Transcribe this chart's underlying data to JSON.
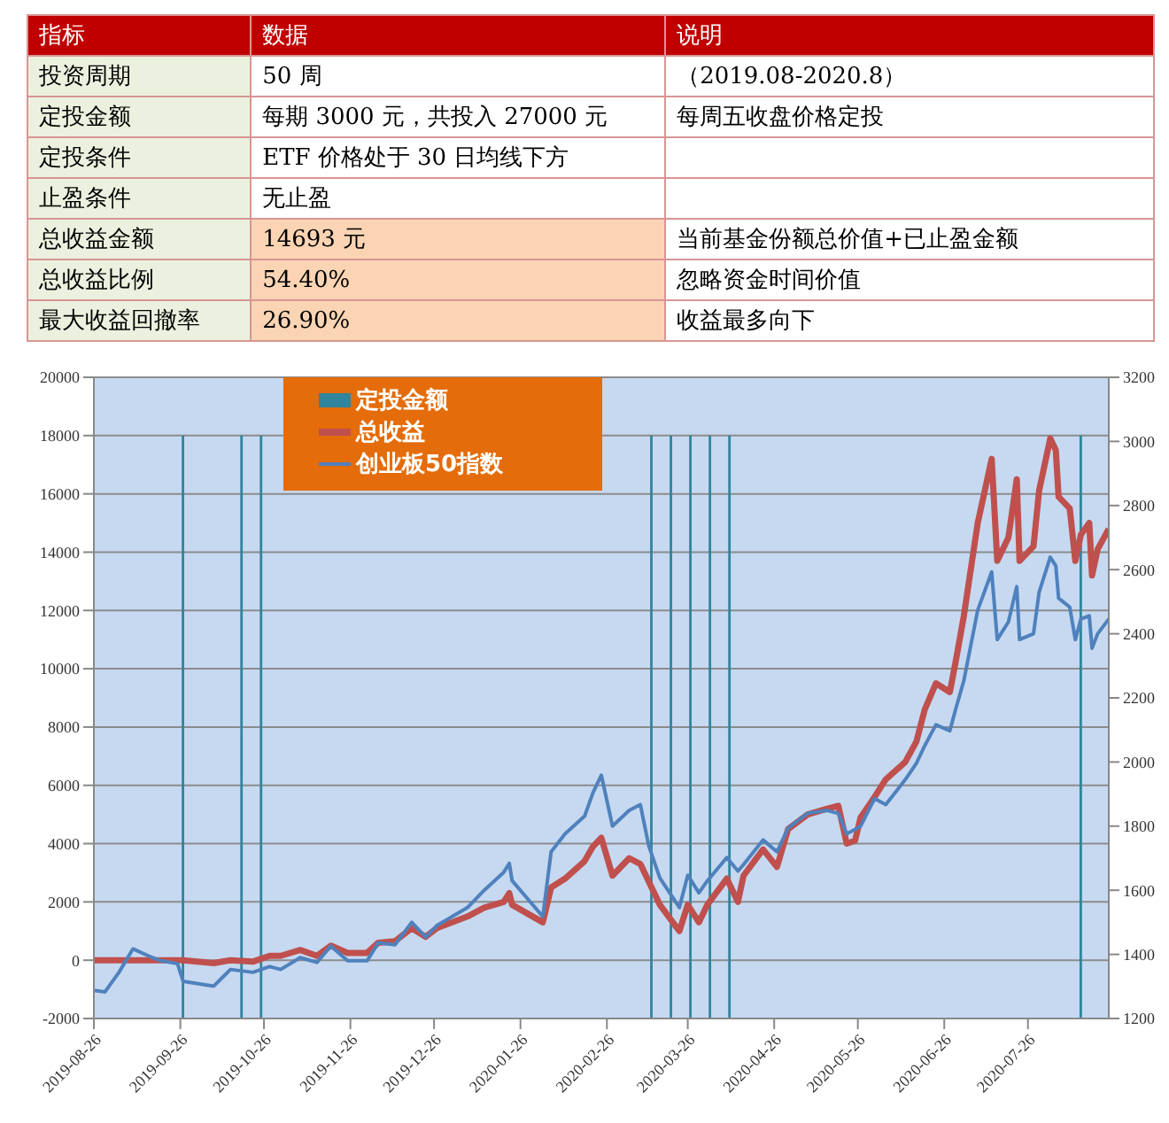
{
  "chart_data": [
    {
      "type": "other",
      "categories": [
        "指标",
        "数据",
        "说明"
      ],
      "y_categories": [
        "投资周期",
        "定投金额",
        "定投条件",
        "止盈条件",
        "总收益金额",
        "总收益比例",
        "最大收益回撤率"
      ],
      "cell_labels": [
        [
          "50 周",
          "（2019.08-2020.8）"
        ],
        [
          "每期 3000 元，共投入 27000 元",
          "每周五收盘价格定投"
        ],
        [
          "ETF 价格处于 30 日均线下方",
          null
        ],
        [
          "无止盈",
          null
        ],
        [
          "14693 元",
          "当前基金份额总价值+已止盈金额"
        ],
        [
          "54.40%",
          "忽略资金时间价值"
        ],
        [
          "26.90%",
          "收益最多向下"
        ]
      ]
    },
    {
      "type": "line",
      "grid": "y",
      "legend": "top left",
      "xlim": [
        "2019-08-26",
        "2020-08-24"
      ],
      "xticks": [
        "2019-08-26",
        "2019-09-26",
        "2019-10-26",
        "2019-11-26",
        "2019-12-26",
        "2020-01-26",
        "2020-02-26",
        "2020-03-26",
        "2020-04-26",
        "2020-05-26",
        "2020-06-26",
        "2020-07-26"
      ],
      "ylim": [
        -2000,
        20000
      ],
      "yticks": [
        -2000,
        0,
        2000,
        4000,
        6000,
        8000,
        10000,
        12000,
        14000,
        16000,
        18000,
        20000
      ],
      "y2lim": [
        1200,
        3200
      ],
      "y2ticks": [
        1200,
        1400,
        1600,
        1800,
        2000,
        2200,
        2400,
        2600,
        2800,
        3000,
        3200
      ],
      "x": [
        "2019-08-26",
        "2019-08-30",
        "2019-09-04",
        "2019-09-09",
        "2019-09-16",
        "2019-09-19",
        "2019-09-25",
        "2019-09-27",
        "2019-10-08",
        "2019-10-14",
        "2019-10-22",
        "2019-10-28",
        "2019-11-01",
        "2019-11-08",
        "2019-11-14",
        "2019-11-19",
        "2019-11-25",
        "2019-12-02",
        "2019-12-06",
        "2019-12-12",
        "2019-12-18",
        "2019-12-23",
        "2019-12-27",
        "2020-01-07",
        "2020-01-13",
        "2020-01-20",
        "2020-01-22",
        "2020-01-23",
        "2020-02-03",
        "2020-02-06",
        "2020-02-11",
        "2020-02-18",
        "2020-02-21",
        "2020-02-24",
        "2020-02-28",
        "2020-03-05",
        "2020-03-09",
        "2020-03-12",
        "2020-03-16",
        "2020-03-23",
        "2020-03-26",
        "2020-03-30",
        "2020-04-02",
        "2020-04-09",
        "2020-04-13",
        "2020-04-15",
        "2020-04-22",
        "2020-04-27",
        "2020-05-01",
        "2020-05-08",
        "2020-05-15",
        "2020-05-19",
        "2020-05-22",
        "2020-05-25",
        "2020-05-27",
        "2020-06-01",
        "2020-06-05",
        "2020-06-12",
        "2020-06-16",
        "2020-06-19",
        "2020-06-23",
        "2020-06-28",
        "2020-06-30",
        "2020-07-03",
        "2020-07-08",
        "2020-07-13",
        "2020-07-15",
        "2020-07-19",
        "2020-07-22",
        "2020-07-23",
        "2020-07-28",
        "2020-07-30",
        "2020-08-03",
        "2020-08-05",
        "2020-08-06",
        "2020-08-10",
        "2020-08-12",
        "2020-08-14",
        "2020-08-17",
        "2020-08-18",
        "2020-08-20",
        "2020-08-24"
      ],
      "series": [
        {
          "name": "定投金额",
          "type": "bar",
          "color": "#31859c",
          "x": [
            "2019-09-27",
            "2019-10-18",
            "2019-10-25",
            "2020-03-13",
            "2020-03-20",
            "2020-03-27",
            "2020-04-03",
            "2020-04-10",
            "2020-08-14"
          ],
          "base": [
            -2000,
            -2000,
            -2000,
            -2000,
            -2000,
            -2000,
            -2000,
            -2000,
            -2000
          ],
          "values": [
            20000,
            20000,
            20000,
            20000,
            20000,
            20000,
            20000,
            20000,
            20000
          ]
        },
        {
          "name": "总收益",
          "type": "line",
          "color": "#c0504d",
          "values": [
            0,
            0,
            0,
            0,
            0,
            0,
            0,
            0,
            -100,
            0,
            -50,
            150,
            150,
            350,
            150,
            500,
            250,
            250,
            600,
            650,
            1100,
            800,
            1100,
            1500,
            1800,
            2000,
            2300,
            1900,
            1300,
            2500,
            2800,
            3400,
            3900,
            4200,
            2900,
            3500,
            3300,
            2700,
            1900,
            1000,
            1900,
            1300,
            1900,
            2800,
            2000,
            2900,
            3800,
            3200,
            4500,
            5000,
            5200,
            5300,
            4000,
            4100,
            4900,
            5600,
            6200,
            6800,
            7500,
            8600,
            9500,
            9200,
            10200,
            11800,
            15000,
            17200,
            13700,
            14500,
            16500,
            13700,
            14200,
            16100,
            17900,
            17500,
            15900,
            15500,
            13700,
            14600,
            15000,
            13200,
            14100,
            14800
          ]
        },
        {
          "name": "创业板50指数",
          "type": "line",
          "axis": "y2",
          "color": "#4f81bd",
          "values": [
            1288,
            1283,
            1344,
            1417,
            1390,
            1380,
            1371,
            1316,
            1301,
            1353,
            1344,
            1362,
            1353,
            1390,
            1375,
            1426,
            1380,
            1380,
            1436,
            1430,
            1500,
            1454,
            1490,
            1546,
            1600,
            1656,
            1684,
            1630,
            1518,
            1720,
            1776,
            1831,
            1904,
            1959,
            1800,
            1849,
            1867,
            1739,
            1638,
            1546,
            1647,
            1592,
            1629,
            1702,
            1660,
            1680,
            1757,
            1720,
            1794,
            1840,
            1849,
            1840,
            1776,
            1790,
            1800,
            1886,
            1867,
            1945,
            1996,
            2051,
            2116,
            2097,
            2162,
            2253,
            2474,
            2593,
            2382,
            2437,
            2547,
            2382,
            2400,
            2529,
            2639,
            2612,
            2511,
            2483,
            2382,
            2446,
            2456,
            2355,
            2400,
            2446
          ]
        }
      ]
    }
  ]
}
